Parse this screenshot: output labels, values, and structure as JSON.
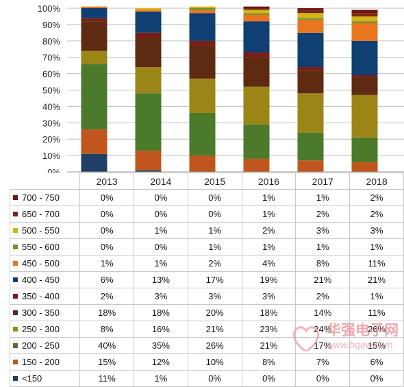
{
  "chart_data": {
    "type": "bar",
    "stacked": true,
    "categories": [
      "2013",
      "2014",
      "2015",
      "2016",
      "2017",
      "2018"
    ],
    "ylim": [
      0,
      100
    ],
    "yticks": [
      "0%",
      "10%",
      "20%",
      "30%",
      "40%",
      "50%",
      "60%",
      "70%",
      "80%",
      "90%",
      "100%"
    ],
    "grid": true,
    "legend": "table-below",
    "series": [
      {
        "name": "<150",
        "color": "#1f3f66",
        "values": [
          11,
          1,
          0,
          0,
          0,
          0
        ],
        "labels": [
          "11%",
          "1%",
          "0%",
          "0%",
          "0%",
          "0%"
        ]
      },
      {
        "name": "150 - 200",
        "color": "#c0561e",
        "values": [
          15,
          12,
          10,
          8,
          7,
          6
        ],
        "labels": [
          "15%",
          "12%",
          "10%",
          "8%",
          "7%",
          "6%"
        ]
      },
      {
        "name": "200 - 250",
        "color": "#4a7a2a",
        "values": [
          40,
          35,
          26,
          21,
          17,
          15
        ],
        "labels": [
          "40%",
          "35%",
          "26%",
          "21%",
          "17%",
          "15%"
        ]
      },
      {
        "name": "250 - 300",
        "color": "#9b8517",
        "values": [
          8,
          16,
          21,
          23,
          24,
          26
        ],
        "labels": [
          "8%",
          "16%",
          "21%",
          "23%",
          "24%",
          "26%"
        ]
      },
      {
        "name": "300 - 350",
        "color": "#5e2a12",
        "values": [
          18,
          18,
          20,
          18,
          14,
          11
        ],
        "labels": [
          "18%",
          "18%",
          "20%",
          "18%",
          "14%",
          "11%"
        ]
      },
      {
        "name": "350 - 400",
        "color": "#7a1d17",
        "values": [
          2,
          3,
          3,
          3,
          2,
          1
        ],
        "labels": [
          "2%",
          "3%",
          "3%",
          "3%",
          "2%",
          "1%"
        ]
      },
      {
        "name": "400 - 450",
        "color": "#0f3f73",
        "values": [
          6,
          13,
          17,
          19,
          21,
          21
        ],
        "labels": [
          "6%",
          "13%",
          "17%",
          "19%",
          "21%",
          "21%"
        ]
      },
      {
        "name": "450 - 500",
        "color": "#e9761f",
        "values": [
          1,
          1,
          2,
          4,
          8,
          11
        ],
        "labels": [
          "1%",
          "1%",
          "2%",
          "4%",
          "8%",
          "11%"
        ]
      },
      {
        "name": "550 - 600",
        "color": "#69942f",
        "values": [
          0,
          0,
          1,
          1,
          1,
          1
        ],
        "labels": [
          "0%",
          "0%",
          "1%",
          "1%",
          "1%",
          "1%"
        ]
      },
      {
        "name": "500 - 550",
        "color": "#d6b417",
        "values": [
          0,
          1,
          1,
          2,
          3,
          3
        ],
        "labels": [
          "0%",
          "1%",
          "1%",
          "2%",
          "3%",
          "3%"
        ]
      },
      {
        "name": "650 - 700",
        "color": "#7a2a12",
        "values": [
          0,
          0,
          0,
          1,
          2,
          2
        ],
        "labels": [
          "0%",
          "0%",
          "0%",
          "1%",
          "2%",
          "2%"
        ]
      },
      {
        "name": "700 - 750",
        "color": "#6e1414",
        "values": [
          0,
          0,
          0,
          1,
          1,
          2
        ],
        "labels": [
          "0%",
          "0%",
          "0%",
          "1%",
          "1%",
          "2%"
        ]
      }
    ],
    "table_row_order": [
      "700 - 750",
      "650 - 700",
      "500 - 550",
      "550 - 600",
      "450 - 500",
      "400 - 450",
      "350 - 400",
      "300 - 350",
      "250 - 300",
      "200 - 250",
      "150 - 200",
      "<150"
    ]
  },
  "watermark": {
    "text": "华强电子网",
    "url": "www.hqew.com"
  }
}
